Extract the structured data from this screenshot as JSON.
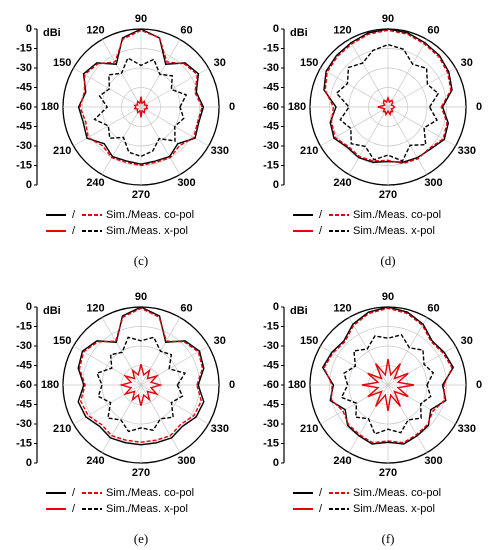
{
  "chart_data": [
    {
      "type": "polar",
      "caption": "(c)",
      "rlabel": "dBi",
      "rlim": [
        -60,
        0
      ],
      "rticks": [
        0,
        -15,
        -30,
        -45,
        -60
      ],
      "thetaticks": [
        0,
        30,
        60,
        90,
        120,
        150,
        180,
        210,
        240,
        270,
        300,
        330
      ],
      "theta": [
        0,
        15,
        30,
        45,
        60,
        75,
        90,
        105,
        120,
        135,
        150,
        165,
        180,
        195,
        210,
        225,
        240,
        255,
        270,
        285,
        300,
        315,
        330,
        345
      ],
      "legend": [
        {
          "label": "Sim./Meas. co-pol",
          "separator": "/"
        },
        {
          "label": "Sim./Meas. x-pol",
          "separator": "/"
        }
      ],
      "series": [
        {
          "color": "#000000",
          "dash": false,
          "values": [
            -12,
            -16,
            -9,
            -12,
            -22,
            -5,
            0,
            -5,
            -22,
            -12,
            -9,
            -16,
            -12,
            -14,
            -12,
            -20,
            -16,
            -17,
            -16,
            -17,
            -16,
            -20,
            -12,
            -14
          ]
        },
        {
          "color": "#e8000b",
          "dash": true,
          "values": [
            -13,
            -17,
            -10,
            -13,
            -20,
            -5,
            -1,
            -6,
            -20,
            -13,
            -10,
            -15,
            -13,
            -16,
            -13,
            -18,
            -15,
            -16,
            -15,
            -16,
            -15,
            -18,
            -13,
            -15
          ]
        },
        {
          "color": "#e8000b",
          "dash": false,
          "values": [
            -56,
            -55,
            -57,
            -56,
            -55,
            -57,
            -52,
            -57,
            -55,
            -56,
            -57,
            -55,
            -56,
            -55,
            -57,
            -56,
            -55,
            -57,
            -52,
            -57,
            -55,
            -56,
            -57,
            -55
          ]
        },
        {
          "color": "#000000",
          "dash": true,
          "values": [
            -30,
            -24,
            -33,
            -26,
            -31,
            -22,
            -28,
            -21,
            -30,
            -25,
            -32,
            -27,
            -34,
            -23,
            -31,
            -26,
            -33,
            -24,
            -22,
            -25,
            -32,
            -23,
            -30,
            -26
          ]
        }
      ]
    },
    {
      "type": "polar",
      "caption": "(d)",
      "rlabel": "dBi",
      "rlim": [
        -60,
        0
      ],
      "rticks": [
        0,
        -15,
        -30,
        -45,
        -60
      ],
      "thetaticks": [
        0,
        30,
        60,
        90,
        120,
        150,
        180,
        210,
        240,
        270,
        300,
        330
      ],
      "theta": [
        0,
        15,
        30,
        45,
        60,
        75,
        90,
        105,
        120,
        135,
        150,
        165,
        180,
        195,
        210,
        225,
        240,
        255,
        270,
        285,
        300,
        315,
        330,
        345
      ],
      "legend": [
        {
          "label": "Sim./Meas. co-pol",
          "separator": "/"
        },
        {
          "label": "Sim./Meas. x-pol",
          "separator": "/"
        }
      ],
      "series": [
        {
          "color": "#000000",
          "dash": false,
          "values": [
            -18,
            -9,
            -6,
            -4,
            -3,
            -1,
            0,
            -1,
            -3,
            -4,
            -5,
            -9,
            -20,
            -14,
            -12,
            -16,
            -15,
            -16,
            -18,
            -16,
            -15,
            -14,
            -10,
            -12
          ]
        },
        {
          "color": "#e8000b",
          "dash": true,
          "values": [
            -19,
            -10,
            -7,
            -5,
            -4,
            -2,
            -1,
            -2,
            -4,
            -5,
            -6,
            -10,
            -18,
            -15,
            -13,
            -17,
            -16,
            -17,
            -19,
            -15,
            -14,
            -15,
            -11,
            -13
          ]
        },
        {
          "color": "#e8000b",
          "dash": false,
          "values": [
            -55,
            -56,
            -57,
            -55,
            -54,
            -56,
            -53,
            -56,
            -54,
            -55,
            -57,
            -56,
            -52,
            -56,
            -57,
            -55,
            -56,
            -54,
            -57,
            -54,
            -56,
            -55,
            -57,
            -56
          ]
        },
        {
          "color": "#000000",
          "dash": true,
          "values": [
            -28,
            -20,
            -25,
            -18,
            -22,
            -14,
            -12,
            -15,
            -21,
            -17,
            -24,
            -19,
            -30,
            -22,
            -27,
            -20,
            -25,
            -18,
            -23,
            -17,
            -26,
            -19,
            -28,
            -21
          ]
        }
      ]
    },
    {
      "type": "polar",
      "caption": "(e)",
      "rlabel": "dBi",
      "rlim": [
        -60,
        0
      ],
      "rticks": [
        0,
        -15,
        -30,
        -45,
        -60
      ],
      "thetaticks": [
        0,
        30,
        60,
        90,
        120,
        150,
        180,
        210,
        240,
        270,
        300,
        330
      ],
      "theta": [
        0,
        15,
        30,
        45,
        60,
        75,
        90,
        105,
        120,
        135,
        150,
        165,
        180,
        195,
        210,
        225,
        240,
        255,
        270,
        285,
        300,
        315,
        330,
        345
      ],
      "legend": [
        {
          "label": "Sim./Meas. co-pol",
          "separator": "/"
        },
        {
          "label": "Sim./Meas. x-pol",
          "separator": "/"
        }
      ],
      "series": [
        {
          "color": "#000000",
          "dash": false,
          "values": [
            -16,
            -10,
            -8,
            -12,
            -22,
            -5,
            0,
            -5,
            -22,
            -12,
            -8,
            -10,
            -16,
            -10,
            -11,
            -15,
            -13,
            -14,
            -14,
            -14,
            -13,
            -15,
            -11,
            -10
          ]
        },
        {
          "color": "#e8000b",
          "dash": true,
          "values": [
            -17,
            -11,
            -9,
            -13,
            -21,
            -6,
            -1,
            -6,
            -21,
            -13,
            -9,
            -11,
            -17,
            -12,
            -13,
            -17,
            -15,
            -16,
            -16,
            -16,
            -15,
            -17,
            -13,
            -12
          ]
        },
        {
          "color": "#e8000b",
          "dash": false,
          "values": [
            -45,
            -52,
            -46,
            -53,
            -47,
            -52,
            -44,
            -52,
            -47,
            -53,
            -46,
            -52,
            -45,
            -52,
            -46,
            -53,
            -47,
            -52,
            -44,
            -52,
            -47,
            -53,
            -46,
            -52
          ]
        },
        {
          "color": "#000000",
          "dash": true,
          "values": [
            -32,
            -25,
            -35,
            -27,
            -30,
            -22,
            -26,
            -22,
            -31,
            -27,
            -34,
            -25,
            -30,
            -26,
            -33,
            -24,
            -29,
            -23,
            -27,
            -24,
            -30,
            -25,
            -33,
            -27
          ]
        }
      ]
    },
    {
      "type": "polar",
      "caption": "(f)",
      "rlabel": "dBi",
      "rlim": [
        -60,
        0
      ],
      "rticks": [
        0,
        -15,
        -30,
        -45,
        -60
      ],
      "thetaticks": [
        0,
        30,
        60,
        90,
        120,
        150,
        180,
        210,
        240,
        270,
        300,
        330
      ],
      "theta": [
        0,
        15,
        30,
        45,
        60,
        75,
        90,
        105,
        120,
        135,
        150,
        165,
        180,
        195,
        210,
        225,
        240,
        255,
        270,
        285,
        300,
        315,
        330,
        345
      ],
      "legend": [
        {
          "label": "Sim./Meas. co-pol",
          "separator": "/"
        },
        {
          "label": "Sim./Meas. x-pol",
          "separator": "/"
        }
      ],
      "series": [
        {
          "color": "#000000",
          "dash": false,
          "values": [
            -18,
            -8,
            -10,
            -12,
            -6,
            -2,
            0,
            -2,
            -6,
            -12,
            -10,
            -8,
            -18,
            -14,
            -22,
            -16,
            -15,
            -13,
            -16,
            -13,
            -15,
            -16,
            -22,
            -14
          ]
        },
        {
          "color": "#e8000b",
          "dash": true,
          "values": [
            -17,
            -9,
            -11,
            -13,
            -7,
            -3,
            -1,
            -3,
            -7,
            -13,
            -11,
            -9,
            -17,
            -15,
            -20,
            -17,
            -16,
            -14,
            -17,
            -14,
            -16,
            -17,
            -20,
            -15
          ]
        },
        {
          "color": "#e8000b",
          "dash": false,
          "values": [
            -40,
            -52,
            -42,
            -53,
            -41,
            -52,
            -40,
            -52,
            -41,
            -53,
            -42,
            -52,
            -40,
            -52,
            -42,
            -53,
            -41,
            -52,
            -40,
            -52,
            -41,
            -53,
            -42,
            -52
          ]
        },
        {
          "color": "#000000",
          "dash": true,
          "values": [
            -30,
            -24,
            -28,
            -22,
            -27,
            -20,
            -24,
            -21,
            -28,
            -23,
            -31,
            -25,
            -29,
            -23,
            -32,
            -25,
            -30,
            -21,
            -26,
            -22,
            -29,
            -24,
            -31,
            -26
          ]
        }
      ]
    }
  ]
}
